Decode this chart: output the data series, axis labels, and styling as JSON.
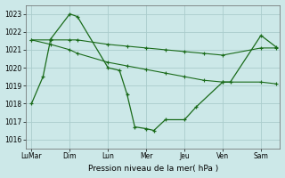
{
  "background_color": "#cce8e8",
  "grid_color": "#aacccc",
  "line_color": "#1a6b1a",
  "xlabel": "Pression niveau de la mer( hPa )",
  "ylim": [
    1015.5,
    1023.5
  ],
  "yticks": [
    1016,
    1017,
    1018,
    1019,
    1020,
    1021,
    1022,
    1023
  ],
  "x_labels": [
    "LuMar",
    "Dim",
    "Lun",
    "Mer",
    "Jeu",
    "Ven",
    "Sam"
  ],
  "x_tick_positions": [
    0,
    1,
    2,
    3,
    4,
    5,
    6
  ],
  "xlim": [
    -0.15,
    6.5
  ],
  "line1": {
    "x": [
      0,
      0.5,
      1,
      1.2,
      2,
      2.5,
      3,
      3.5,
      4,
      4.5,
      5,
      6,
      6.4
    ],
    "y": [
      1021.55,
      1021.55,
      1021.55,
      1021.55,
      1021.3,
      1021.2,
      1021.1,
      1021.0,
      1020.9,
      1020.8,
      1020.7,
      1021.1,
      1021.1
    ]
  },
  "line2": {
    "x": [
      0,
      0.5,
      1,
      1.2,
      2,
      2.5,
      3,
      3.5,
      4,
      4.5,
      5,
      6,
      6.4
    ],
    "y": [
      1021.55,
      1021.3,
      1021.0,
      1020.8,
      1020.3,
      1020.1,
      1019.9,
      1019.7,
      1019.5,
      1019.3,
      1019.2,
      1019.2,
      1019.1
    ]
  },
  "line3": {
    "x": [
      0,
      0.3,
      0.5,
      1.0,
      1.2,
      2.0,
      2.3,
      2.5,
      2.7,
      3.0,
      3.2,
      3.5,
      4.0,
      4.3,
      5.0,
      5.2,
      6.0,
      6.4
    ],
    "y": [
      1018.0,
      1019.5,
      1021.6,
      1023.0,
      1022.85,
      1020.0,
      1019.85,
      1018.5,
      1016.7,
      1016.6,
      1016.5,
      1017.1,
      1017.1,
      1017.8,
      1019.2,
      1019.2,
      1021.8,
      1021.15
    ]
  },
  "figsize": [
    3.2,
    2.0
  ],
  "dpi": 100
}
